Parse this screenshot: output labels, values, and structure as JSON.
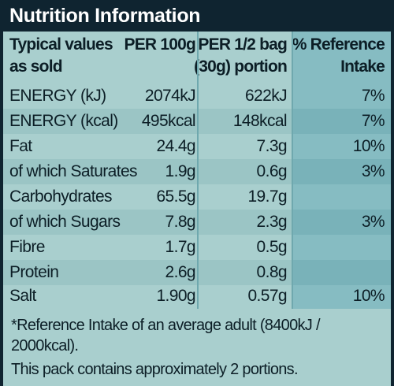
{
  "title": "Nutrition Information",
  "headers": {
    "label_line1": "Typical values",
    "label_line2": "as sold",
    "per100_line1": "PER 100g",
    "portion_line1": "PER 1/2 bag",
    "portion_line2": "(30g) portion",
    "intake_line1": "% Reference",
    "intake_line2": "Intake"
  },
  "rows": [
    {
      "label": "ENERGY (kJ)",
      "per100": "2074kJ",
      "portion": "622kJ",
      "intake": "7%"
    },
    {
      "label": "ENERGY (kcal)",
      "per100": "495kcal",
      "portion": "148kcal",
      "intake": "7%"
    },
    {
      "label": "Fat",
      "per100": "24.4g",
      "portion": "7.3g",
      "intake": "10%"
    },
    {
      "label": "of which Saturates",
      "per100": "1.9g",
      "portion": "0.6g",
      "intake": "3%"
    },
    {
      "label": "Carbohydrates",
      "per100": "65.5g",
      "portion": "19.7g",
      "intake": ""
    },
    {
      "label": "of which Sugars",
      "per100": "7.8g",
      "portion": "2.3g",
      "intake": "3%"
    },
    {
      "label": "Fibre",
      "per100": "1.7g",
      "portion": "0.5g",
      "intake": ""
    },
    {
      "label": "Protein",
      "per100": "2.6g",
      "portion": "0.8g",
      "intake": ""
    },
    {
      "label": "Salt",
      "per100": "1.90g",
      "portion": "0.57g",
      "intake": "10%"
    }
  ],
  "footnote": "*Reference Intake of an average adult (8400kJ / 2000kcal).",
  "portions_note": "This pack contains approximately 2 portions.",
  "colors": {
    "title_background": "#0f2430",
    "table_background": "#a9cfce",
    "intake_column": "#86bcc2",
    "text": "#0c1e26"
  }
}
